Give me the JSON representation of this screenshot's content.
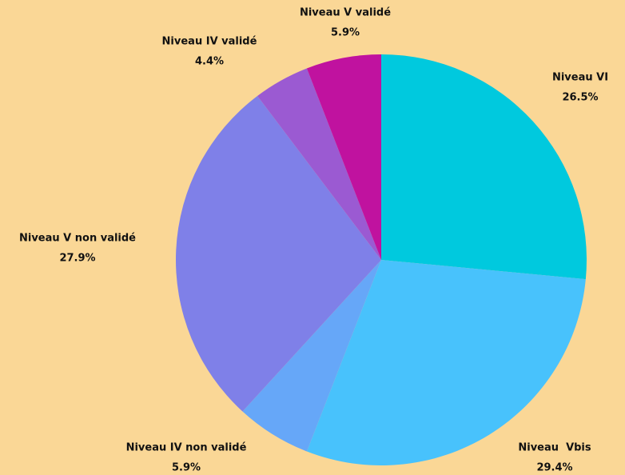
{
  "chart_data": {
    "type": "pie",
    "categories": [
      "Niveau VI",
      "Niveau  Vbis",
      "Niveau IV non validé",
      "Niveau V non validé",
      "Niveau IV validé",
      "Niveau V validé"
    ],
    "values": [
      26.5,
      29.4,
      5.9,
      27.9,
      4.4,
      5.9
    ],
    "value_labels": [
      "26.5%",
      "29.4%",
      "5.9%",
      "27.9%",
      "4.4%",
      "5.9%"
    ],
    "colors": [
      "#00c9de",
      "#48c2fc",
      "#66a7f8",
      "#7f80e8",
      "#9b5ad2",
      "#c0129f"
    ]
  }
}
